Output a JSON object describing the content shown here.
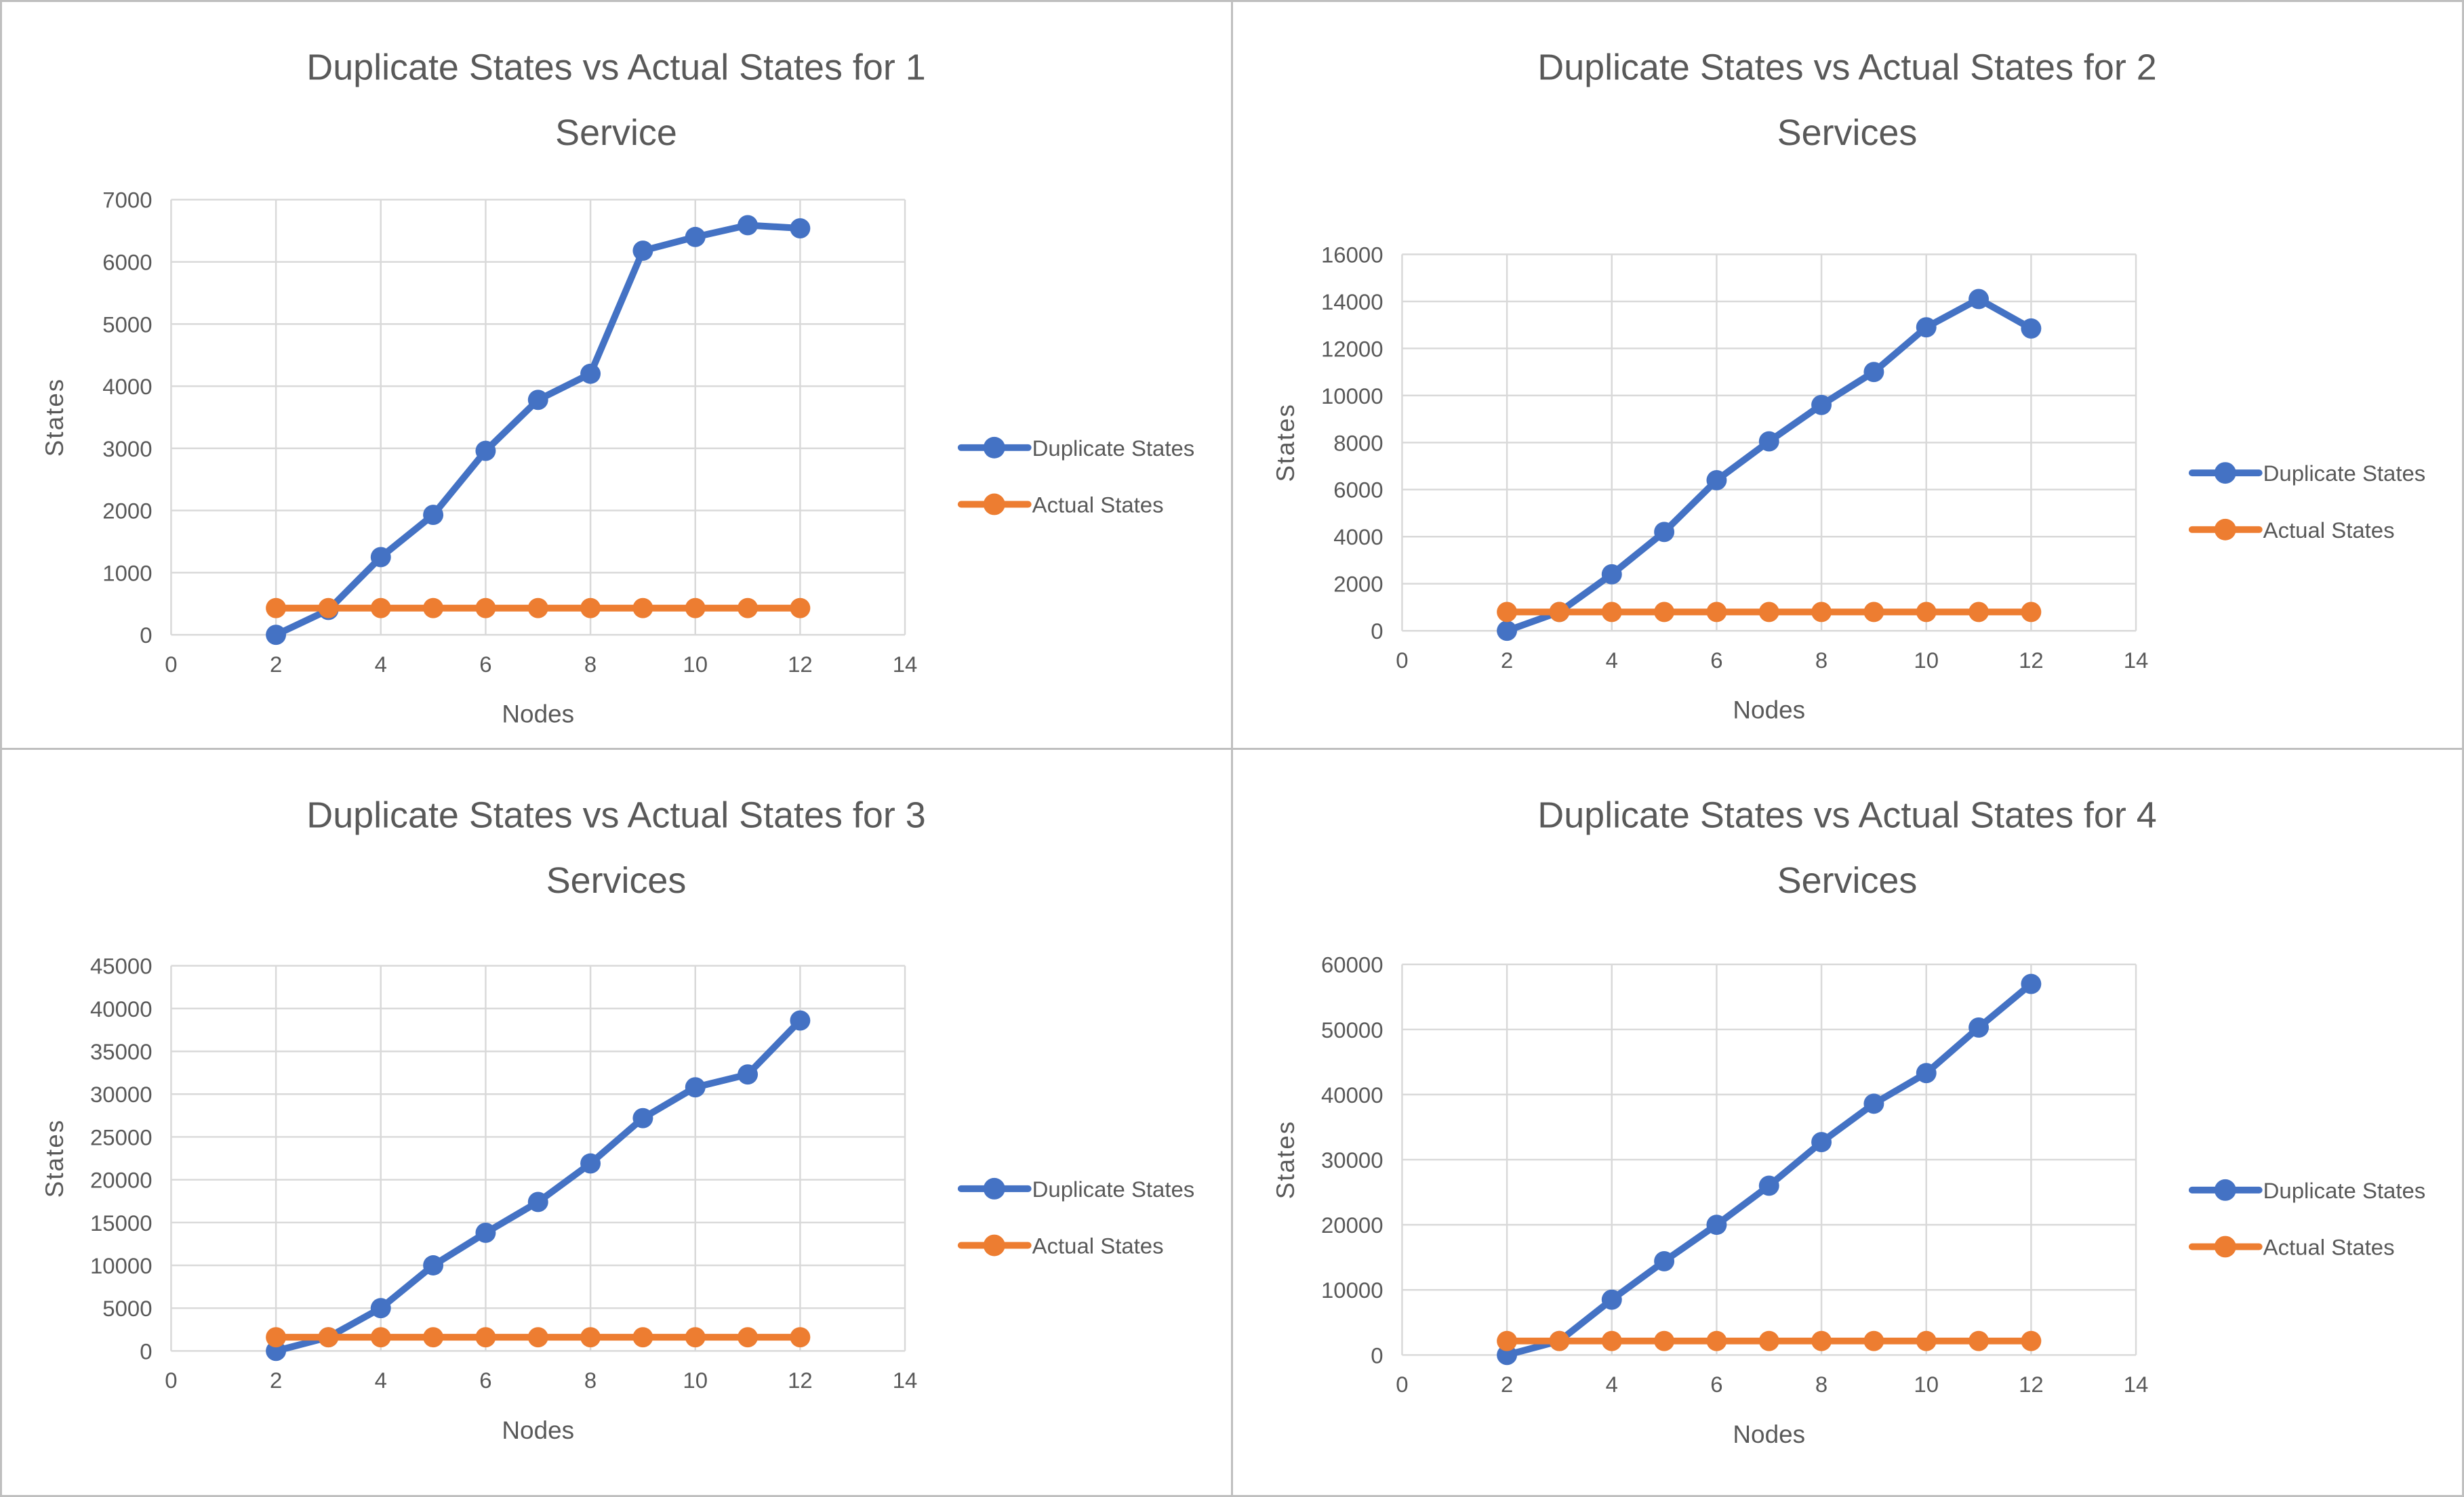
{
  "page": {
    "background_color": "#FFFFFF",
    "divider_color": "#BFBFBF"
  },
  "colors": {
    "duplicate_series": "#4472C4",
    "actual_series": "#ED7D31",
    "gridline": "#D9D9D9",
    "text": "#595959"
  },
  "chart_data": [
    {
      "type": "line",
      "title": [
        "Duplicate States vs Actual States for 1",
        "Service"
      ],
      "xlabel": "Nodes",
      "ylabel": "States",
      "xlim": [
        0,
        14
      ],
      "xstep": 2,
      "ylim": [
        0,
        7000
      ],
      "ystep": 1000,
      "grid": true,
      "legend_position": "right",
      "x": [
        2,
        3,
        4,
        5,
        6,
        7,
        8,
        9,
        10,
        11,
        12
      ],
      "series": [
        {
          "name": "Duplicate States",
          "color": "#4472C4",
          "values": [
            0,
            400,
            1250,
            1930,
            2960,
            3780,
            4200,
            6180,
            6400,
            6590,
            6540
          ]
        },
        {
          "name": "Actual States",
          "color": "#ED7D31",
          "values": [
            430,
            430,
            430,
            430,
            430,
            430,
            430,
            430,
            430,
            430,
            430
          ]
        }
      ]
    },
    {
      "type": "line",
      "title": [
        "Duplicate States vs Actual States for 2",
        "Services"
      ],
      "xlabel": "Nodes",
      "ylabel": "States",
      "xlim": [
        0,
        14
      ],
      "xstep": 2,
      "ylim": [
        0,
        16000
      ],
      "ystep": 2000,
      "grid": true,
      "legend_position": "right",
      "x": [
        2,
        3,
        4,
        5,
        6,
        7,
        8,
        9,
        10,
        11,
        12
      ],
      "series": [
        {
          "name": "Duplicate States",
          "color": "#4472C4",
          "values": [
            0,
            800,
            2400,
            4200,
            6400,
            8050,
            9600,
            11000,
            12900,
            14100,
            12850
          ]
        },
        {
          "name": "Actual States",
          "color": "#ED7D31",
          "values": [
            800,
            800,
            800,
            800,
            800,
            800,
            800,
            800,
            800,
            800,
            800
          ]
        }
      ]
    },
    {
      "type": "line",
      "title": [
        "Duplicate States vs Actual States for 3",
        "Services"
      ],
      "xlabel": "Nodes",
      "ylabel": "States",
      "xlim": [
        0,
        14
      ],
      "xstep": 2,
      "ylim": [
        0,
        45000
      ],
      "ystep": 5000,
      "grid": true,
      "legend_position": "right",
      "x": [
        2,
        3,
        4,
        5,
        6,
        7,
        8,
        9,
        10,
        11,
        12
      ],
      "series": [
        {
          "name": "Duplicate States",
          "color": "#4472C4",
          "values": [
            0,
            1600,
            5000,
            10000,
            13800,
            17400,
            21900,
            27200,
            30800,
            32300,
            38600
          ]
        },
        {
          "name": "Actual States",
          "color": "#ED7D31",
          "values": [
            1600,
            1600,
            1600,
            1600,
            1600,
            1600,
            1600,
            1600,
            1600,
            1600,
            1600
          ]
        }
      ]
    },
    {
      "type": "line",
      "title": [
        "Duplicate States vs Actual States for 4",
        "Services"
      ],
      "xlabel": "Nodes",
      "ylabel": "States",
      "xlim": [
        0,
        14
      ],
      "xstep": 2,
      "ylim": [
        0,
        60000
      ],
      "ystep": 10000,
      "grid": true,
      "legend_position": "right",
      "x": [
        2,
        3,
        4,
        5,
        6,
        7,
        8,
        9,
        10,
        11,
        12
      ],
      "series": [
        {
          "name": "Duplicate States",
          "color": "#4472C4",
          "values": [
            0,
            2150,
            8500,
            14400,
            20000,
            26000,
            32700,
            38600,
            43300,
            50300,
            57000
          ]
        },
        {
          "name": "Actual States",
          "color": "#ED7D31",
          "values": [
            2150,
            2150,
            2150,
            2150,
            2150,
            2150,
            2150,
            2150,
            2150,
            2150,
            2150
          ]
        }
      ]
    }
  ]
}
